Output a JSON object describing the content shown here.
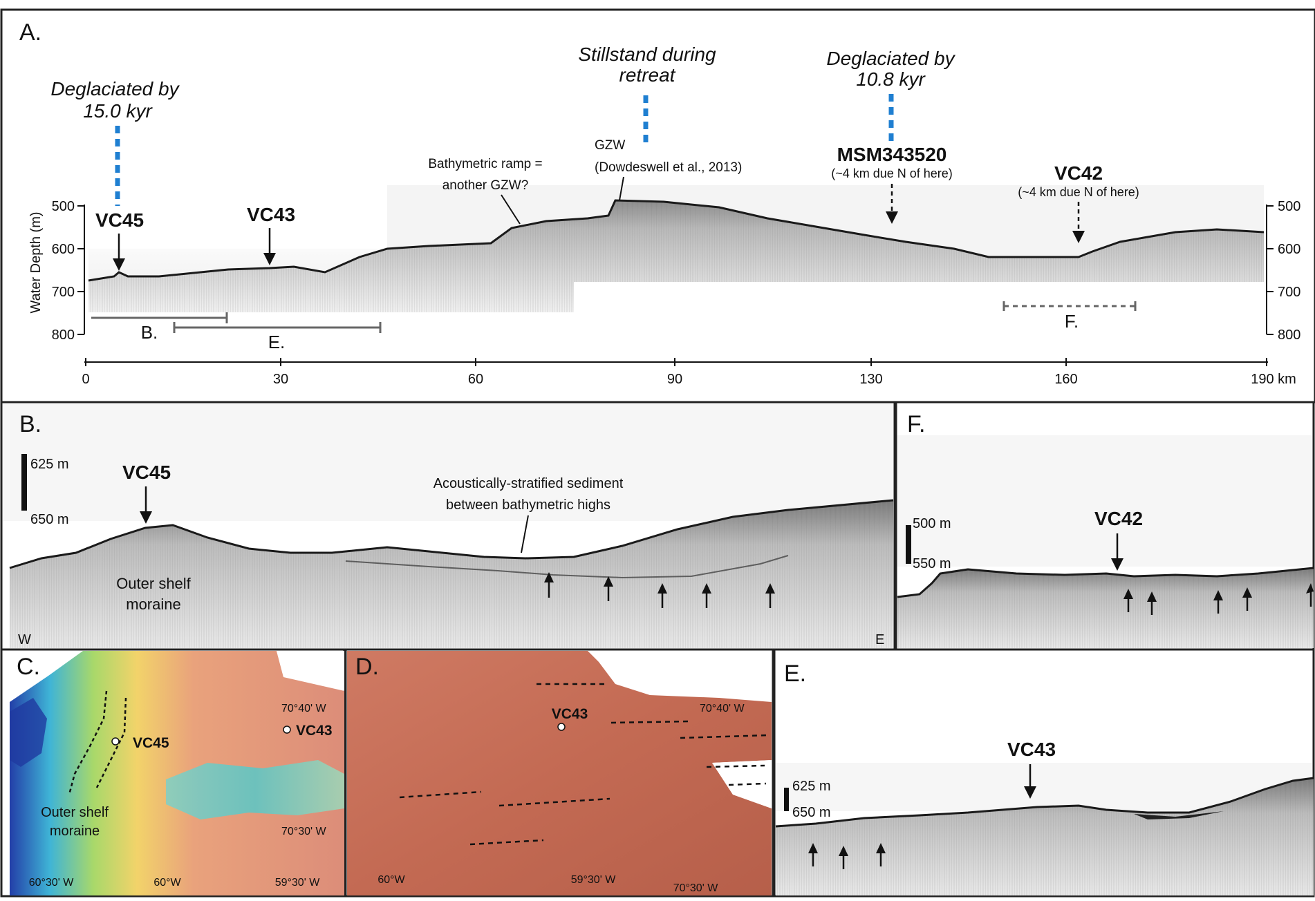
{
  "panels": {
    "a": {
      "label": "A.",
      "annotations": {
        "deglac_15_line1": "Deglaciated by",
        "deglac_15_line2": "15.0 kyr",
        "stillstand_line1": "Stillstand during",
        "stillstand_line2": "retreat",
        "deglac_108_line1": "Deglaciated by",
        "deglac_108_line2": "10.8 kyr",
        "ramp_line1": "Bathymetric ramp =",
        "ramp_line2": "another GZW?",
        "gzw": "GZW",
        "gzw_ref": "(Dowdeswell et al., 2013)",
        "msm": "MSM343520",
        "msm_note": "(~4 km due N of here)",
        "vc42": "VC42",
        "vc42_note": "(~4 km due N of here)",
        "vc45": "VC45",
        "vc43": "VC43"
      },
      "y_axis": {
        "label": "Water Depth (m)",
        "ticks": [
          "500",
          "600",
          "700",
          "800"
        ]
      },
      "x_axis": {
        "ticks": [
          "0",
          "30",
          "60",
          "90",
          "130",
          "160",
          "190 km"
        ]
      },
      "range_labels": {
        "b": "B.",
        "e": "E.",
        "f": "F."
      }
    },
    "b": {
      "label": "B.",
      "scale_top": "625 m",
      "scale_bottom": "650 m",
      "vc45": "VC45",
      "strat_line1": "Acoustically-stratified sediment",
      "strat_line2": "between bathymetric highs",
      "moraine_line1": "Outer shelf",
      "moraine_line2": "moraine",
      "west": "W",
      "east": "E"
    },
    "f": {
      "label": "F.",
      "scale_top": "500 m",
      "scale_bottom": "550 m",
      "vc42": "VC42"
    },
    "c": {
      "label": "C.",
      "vc45": "VC45",
      "vc43": "VC43",
      "lat_upper": "70°40' W",
      "lat_lower": "70°30' W",
      "moraine_line1": "Outer shelf",
      "moraine_line2": "moraine",
      "lon_ticks": [
        "60°30' W",
        "60°W",
        "59°30' W"
      ]
    },
    "d": {
      "label": "D.",
      "vc43": "VC43",
      "lat_upper": "70°40' W",
      "lon_ticks": [
        "60°W",
        "59°30' W",
        "70°30' W"
      ]
    },
    "e": {
      "label": "E.",
      "vc43": "VC43",
      "scale_top": "625 m",
      "scale_bottom": "650 m"
    }
  },
  "colors": {
    "frame": "#222222",
    "marker_blue": "#1f7fd1",
    "seabed": "#1a1a1a",
    "bathy_salmon": "#d9826f",
    "bathy_terracotta": "#c7705a"
  }
}
